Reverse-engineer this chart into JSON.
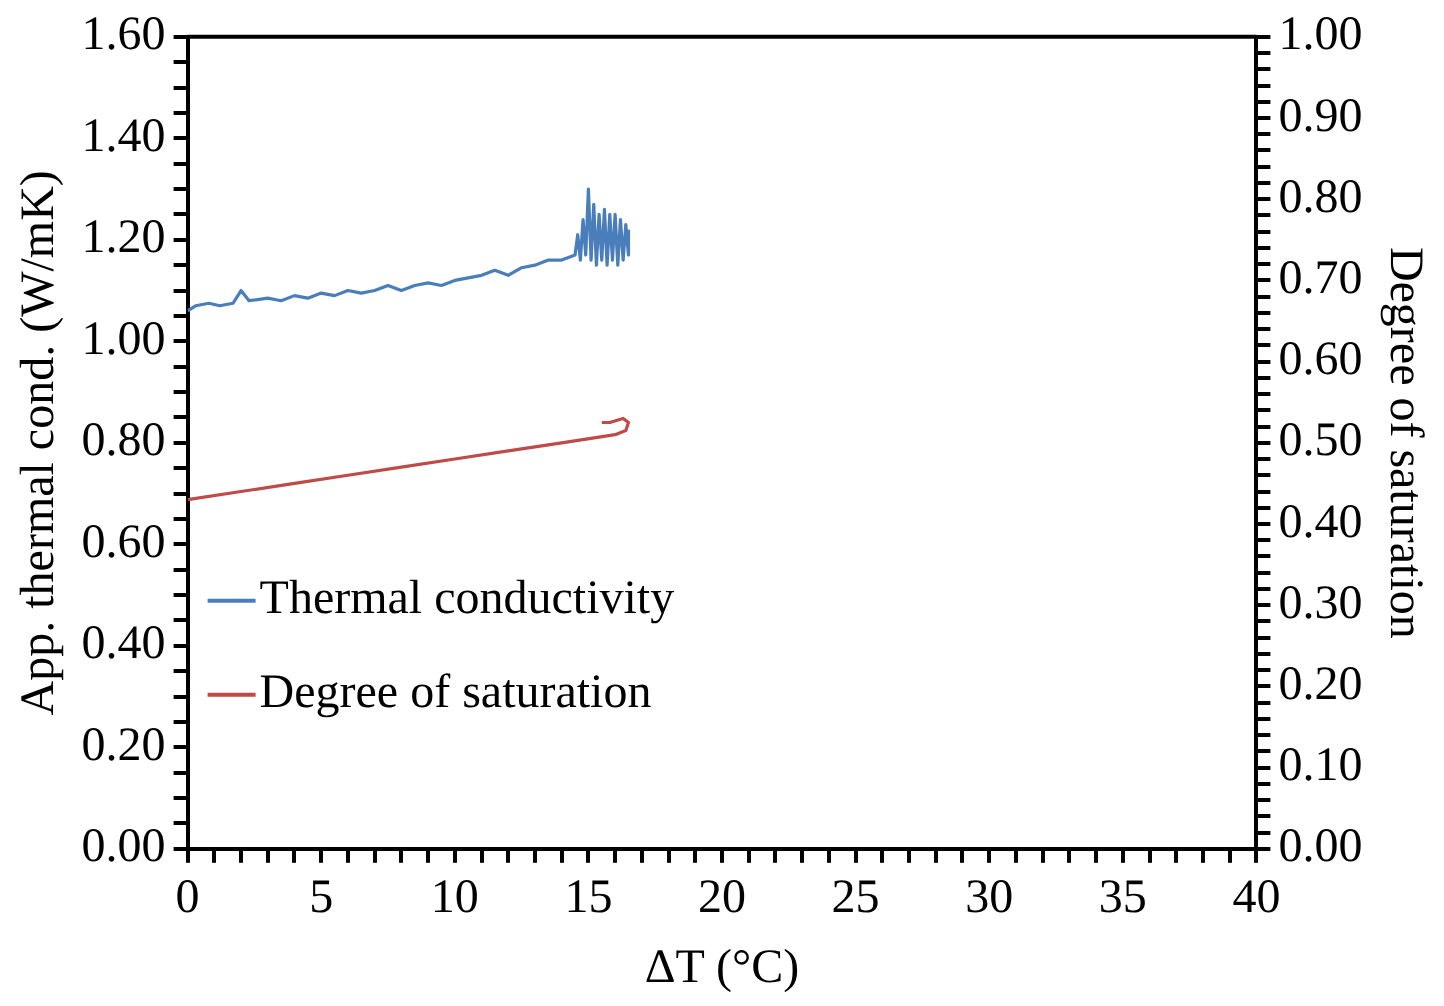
{
  "chart_data": {
    "type": "line",
    "xlabel": "ΔT (°C)",
    "ylabel": "App. thermal cond. (W/mK)",
    "y2label": "Degree of saturation",
    "xlim": [
      0,
      40
    ],
    "xticks": [
      0,
      {
        "value": 1,
        "label": null
      },
      {
        "value": 2,
        "label": null
      },
      {
        "value": 3,
        "label": null
      },
      {
        "value": 4,
        "label": null
      },
      5,
      {
        "value": 6,
        "label": null
      },
      {
        "value": 7,
        "label": null
      },
      {
        "value": 8,
        "label": null
      },
      {
        "value": 9,
        "label": null
      },
      10,
      {
        "value": 11,
        "label": null
      },
      {
        "value": 12,
        "label": null
      },
      {
        "value": 13,
        "label": null
      },
      {
        "value": 14,
        "label": null
      },
      15,
      {
        "value": 16,
        "label": null
      },
      {
        "value": 17,
        "label": null
      },
      {
        "value": 18,
        "label": null
      },
      {
        "value": 19,
        "label": null
      },
      20,
      {
        "value": 21,
        "label": null
      },
      {
        "value": 22,
        "label": null
      },
      {
        "value": 23,
        "label": null
      },
      {
        "value": 24,
        "label": null
      },
      25,
      {
        "value": 26,
        "label": null
      },
      {
        "value": 27,
        "label": null
      },
      {
        "value": 28,
        "label": null
      },
      {
        "value": 29,
        "label": null
      },
      30,
      {
        "value": 31,
        "label": null
      },
      {
        "value": 32,
        "label": null
      },
      {
        "value": 33,
        "label": null
      },
      {
        "value": 34,
        "label": null
      },
      35,
      {
        "value": 36,
        "label": null
      },
      {
        "value": 37,
        "label": null
      },
      {
        "value": 38,
        "label": null
      },
      {
        "value": 39,
        "label": null
      },
      40
    ],
    "ylim": [
      0,
      1.6
    ],
    "yticks": [
      {
        "value": 0,
        "label": "0.00"
      },
      {
        "value": 0.05,
        "label": null
      },
      {
        "value": 0.1,
        "label": null
      },
      {
        "value": 0.15,
        "label": null
      },
      {
        "value": 0.2,
        "label": "0.20"
      },
      {
        "value": 0.25,
        "label": null
      },
      {
        "value": 0.3,
        "label": null
      },
      {
        "value": 0.35,
        "label": null
      },
      {
        "value": 0.4,
        "label": "0.40"
      },
      {
        "value": 0.45,
        "label": null
      },
      {
        "value": 0.5,
        "label": null
      },
      {
        "value": 0.55,
        "label": null
      },
      {
        "value": 0.6,
        "label": "0.60"
      },
      {
        "value": 0.65,
        "label": null
      },
      {
        "value": 0.7,
        "label": null
      },
      {
        "value": 0.75,
        "label": null
      },
      {
        "value": 0.8,
        "label": "0.80"
      },
      {
        "value": 0.85,
        "label": null
      },
      {
        "value": 0.9,
        "label": null
      },
      {
        "value": 0.95,
        "label": null
      },
      {
        "value": 1.0,
        "label": "1.00"
      },
      {
        "value": 1.05,
        "label": null
      },
      {
        "value": 1.1,
        "label": null
      },
      {
        "value": 1.15,
        "label": null
      },
      {
        "value": 1.2,
        "label": "1.20"
      },
      {
        "value": 1.25,
        "label": null
      },
      {
        "value": 1.3,
        "label": null
      },
      {
        "value": 1.35,
        "label": null
      },
      {
        "value": 1.4,
        "label": "1.40"
      },
      {
        "value": 1.45,
        "label": null
      },
      {
        "value": 1.5,
        "label": null
      },
      {
        "value": 1.55,
        "label": null
      },
      {
        "value": 1.6,
        "label": "1.60"
      }
    ],
    "y2lim": [
      0,
      1
    ],
    "y2ticks": [
      {
        "value": 0,
        "label": "0.00"
      },
      {
        "value": 0.02,
        "label": null
      },
      {
        "value": 0.04,
        "label": null
      },
      {
        "value": 0.06,
        "label": null
      },
      {
        "value": 0.08,
        "label": null
      },
      {
        "value": 0.1,
        "label": "0.10"
      },
      {
        "value": 0.12,
        "label": null
      },
      {
        "value": 0.14,
        "label": null
      },
      {
        "value": 0.16,
        "label": null
      },
      {
        "value": 0.18,
        "label": null
      },
      {
        "value": 0.2,
        "label": "0.20"
      },
      {
        "value": 0.22,
        "label": null
      },
      {
        "value": 0.24,
        "label": null
      },
      {
        "value": 0.26,
        "label": null
      },
      {
        "value": 0.28,
        "label": null
      },
      {
        "value": 0.3,
        "label": "0.30"
      },
      {
        "value": 0.32,
        "label": null
      },
      {
        "value": 0.34,
        "label": null
      },
      {
        "value": 0.36,
        "label": null
      },
      {
        "value": 0.38,
        "label": null
      },
      {
        "value": 0.4,
        "label": "0.40"
      },
      {
        "value": 0.42,
        "label": null
      },
      {
        "value": 0.44,
        "label": null
      },
      {
        "value": 0.46,
        "label": null
      },
      {
        "value": 0.48,
        "label": null
      },
      {
        "value": 0.5,
        "label": "0.50"
      },
      {
        "value": 0.52,
        "label": null
      },
      {
        "value": 0.54,
        "label": null
      },
      {
        "value": 0.56,
        "label": null
      },
      {
        "value": 0.58,
        "label": null
      },
      {
        "value": 0.6,
        "label": "0.60"
      },
      {
        "value": 0.62,
        "label": null
      },
      {
        "value": 0.64,
        "label": null
      },
      {
        "value": 0.66,
        "label": null
      },
      {
        "value": 0.68,
        "label": null
      },
      {
        "value": 0.7,
        "label": "0.70"
      },
      {
        "value": 0.72,
        "label": null
      },
      {
        "value": 0.74,
        "label": null
      },
      {
        "value": 0.76,
        "label": null
      },
      {
        "value": 0.78,
        "label": null
      },
      {
        "value": 0.8,
        "label": "0.80"
      },
      {
        "value": 0.82,
        "label": null
      },
      {
        "value": 0.84,
        "label": null
      },
      {
        "value": 0.86,
        "label": null
      },
      {
        "value": 0.88,
        "label": null
      },
      {
        "value": 0.9,
        "label": "0.90"
      },
      {
        "value": 0.92,
        "label": null
      },
      {
        "value": 0.94,
        "label": null
      },
      {
        "value": 0.96,
        "label": null
      },
      {
        "value": 0.98,
        "label": null
      },
      {
        "value": 1.0,
        "label": "1.00"
      }
    ],
    "grid": false,
    "legend": "bottom left",
    "marker": "none",
    "line_style": "solid",
    "series": [
      {
        "name": "Thermal conductivity",
        "color": "#4a7ebb",
        "x": [
          0,
          0.3,
          0.8,
          1.2,
          1.7,
          2.0,
          2.3,
          3,
          3.5,
          4,
          4.5,
          5,
          5.5,
          6,
          6.5,
          7,
          7.5,
          8,
          8.5,
          9,
          9.5,
          10,
          10.5,
          11,
          11.5,
          12,
          12.5,
          13,
          13.5,
          14,
          14.5,
          14.6,
          14.7,
          14.8,
          14.9,
          15.0,
          15.1,
          15.2,
          15.3,
          15.4,
          15.5,
          15.6,
          15.7,
          15.8,
          15.9,
          16.0,
          16.1,
          16.2,
          16.3,
          16.4,
          16.5,
          16.5
        ],
        "values": [
          1.06,
          1.07,
          1.075,
          1.07,
          1.075,
          1.1,
          1.08,
          1.085,
          1.08,
          1.09,
          1.085,
          1.095,
          1.09,
          1.1,
          1.095,
          1.1,
          1.11,
          1.1,
          1.11,
          1.115,
          1.11,
          1.12,
          1.125,
          1.13,
          1.14,
          1.13,
          1.145,
          1.15,
          1.16,
          1.16,
          1.17,
          1.21,
          1.16,
          1.24,
          1.17,
          1.3,
          1.16,
          1.27,
          1.15,
          1.25,
          1.16,
          1.26,
          1.15,
          1.25,
          1.16,
          1.25,
          1.15,
          1.24,
          1.16,
          1.23,
          1.17,
          1.22
        ]
      },
      {
        "name": "Degree of saturation",
        "color": "#be4b48",
        "axis": "y2",
        "x": [
          0,
          2,
          4,
          6,
          8,
          10,
          12,
          14,
          16,
          16.4,
          16.5,
          16.3,
          15.8,
          15.5
        ],
        "values": [
          0.43,
          0.44,
          0.45,
          0.46,
          0.47,
          0.48,
          0.49,
          0.5,
          0.51,
          0.515,
          0.525,
          0.53,
          0.525,
          0.525
        ]
      }
    ]
  }
}
